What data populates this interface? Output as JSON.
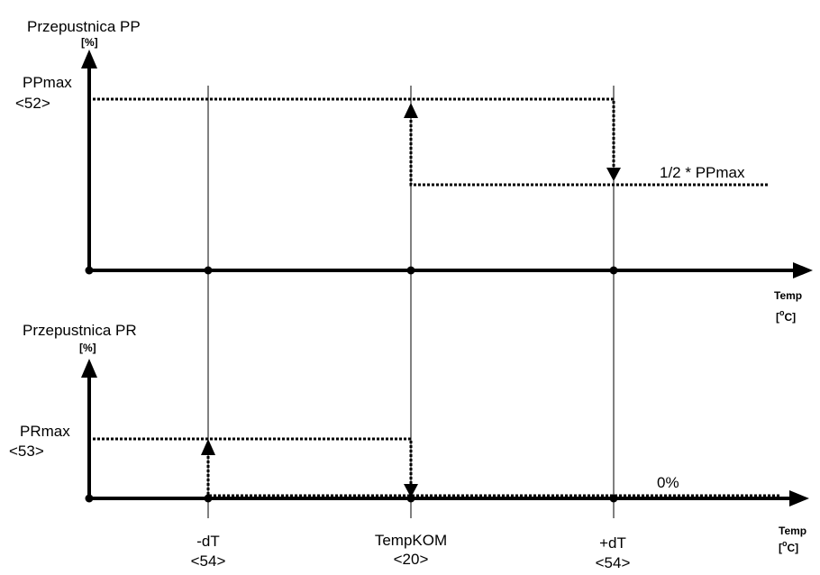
{
  "top_chart": {
    "title": "Przepustnica PP",
    "y_unit": "[%]",
    "max_label": "PPmax",
    "max_param": "<52>",
    "half_label": "1/2 * PPmax",
    "x_unit_top": "Temp",
    "x_unit_bottom_open": "[",
    "x_unit_sup": "o",
    "x_unit_bottom_close": "C]"
  },
  "bottom_chart": {
    "title": "Przepustnica PR",
    "y_unit": "[%]",
    "max_label": "PRmax",
    "max_param": "<53>",
    "zero_label": "0%",
    "x_unit_top": "Temp",
    "x_unit_bottom_open": "[",
    "x_unit_sup": "o",
    "x_unit_bottom_close": "C]"
  },
  "x_markers": [
    {
      "name": "-dT",
      "param": "<54>"
    },
    {
      "name": "TempKOM",
      "param": "<20>"
    },
    {
      "name": "+dT",
      "param": "<54>"
    }
  ],
  "colors": {
    "line": "#000000",
    "background": "#ffffff"
  }
}
